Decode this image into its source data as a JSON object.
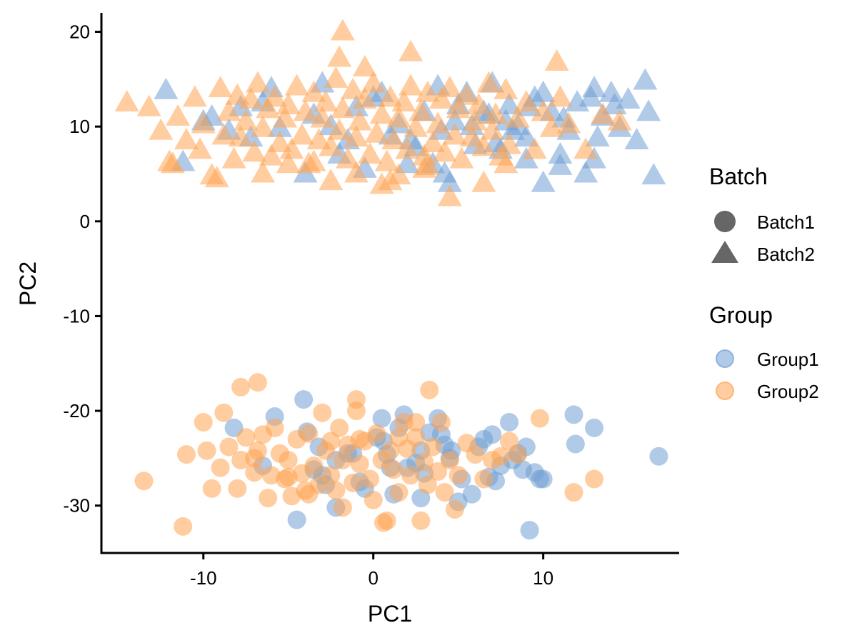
{
  "chart_data": {
    "type": "scatter",
    "xlabel": "PC1",
    "ylabel": "PC2",
    "xlim": [
      -16,
      18
    ],
    "ylim": [
      -35,
      22
    ],
    "x_ticks": [
      -10,
      0,
      10
    ],
    "y_ticks": [
      -30,
      -20,
      -10,
      0,
      10,
      20
    ],
    "grid": false,
    "legend_position": "right",
    "legend": {
      "batch": {
        "title": "Batch",
        "items": [
          {
            "label": "Batch1",
            "shape": "circle"
          },
          {
            "label": "Batch2",
            "shape": "triangle"
          }
        ]
      },
      "group": {
        "title": "Group",
        "items": [
          {
            "label": "Group1",
            "color": "#6F9FD4"
          },
          {
            "label": "Group2",
            "color": "#FFA452"
          }
        ]
      }
    },
    "colors": {
      "Group1": "#6F9FD4",
      "Group2": "#FFA452",
      "legend_shape": "#666666"
    },
    "point_alpha": 0.55,
    "series": [
      {
        "group": "Group1",
        "batch": "Batch1",
        "x": [
          -8.2,
          -5.8,
          -4.1,
          -3.9,
          -3.5,
          -2.8,
          -2.2,
          -1.5,
          0.5,
          0.6,
          1.0,
          1.8,
          2.5,
          2.8,
          3.8,
          4.0,
          4.5,
          5.2,
          5.8,
          6.2,
          7.0,
          7.2,
          8.0,
          8.5,
          9.0,
          9.5,
          9.8,
          11.8,
          11.9,
          13.0,
          16.8,
          9.2,
          -4.5,
          -3.0,
          -0.5,
          0.2,
          1.5,
          2.8,
          4.6,
          6.5,
          7.5,
          8.8,
          -2.2,
          -0.8,
          1.2,
          3.3,
          5.0,
          -6.5,
          -1.2,
          2.0,
          4.2,
          6.8,
          8.2,
          10.0,
          -3.2,
          0.8,
          3.0
        ],
        "y": [
          -21.8,
          -20.6,
          -18.8,
          -22.2,
          -26.2,
          -27.8,
          -30.2,
          -24.5,
          -20.8,
          -23.2,
          -26.0,
          -20.4,
          -25.5,
          -29.2,
          -20.8,
          -22.5,
          -25.0,
          -27.2,
          -28.8,
          -23.8,
          -22.5,
          -27.4,
          -21.2,
          -24.5,
          -23.8,
          -26.5,
          -27.2,
          -20.4,
          -23.5,
          -21.8,
          -24.8,
          -32.6,
          -31.5,
          -26.8,
          -28.2,
          -22.8,
          -21.8,
          -24.2,
          -24.2,
          -23.0,
          -25.8,
          -26.2,
          -25.2,
          -27.5,
          -28.8,
          -22.3,
          -29.6,
          -25.8,
          -24.5,
          -26.0,
          -23.6,
          -27.0,
          -25.2,
          -27.2,
          -23.8,
          -24.6,
          -26.6
        ]
      },
      {
        "group": "Group2",
        "batch": "Batch1",
        "x": [
          -13.5,
          -11.0,
          -11.2,
          -10.0,
          -9.8,
          -9.5,
          -9.0,
          -8.8,
          -8.5,
          -8.0,
          -7.8,
          -7.5,
          -7.0,
          -6.8,
          -6.5,
          -6.2,
          -6.0,
          -5.8,
          -5.5,
          -5.2,
          -5.0,
          -4.8,
          -4.5,
          -4.2,
          -4.0,
          -3.8,
          -3.5,
          -3.2,
          -3.0,
          -2.8,
          -2.5,
          -2.2,
          -2.0,
          -1.8,
          -1.5,
          -1.2,
          -1.0,
          -0.8,
          -0.5,
          -0.2,
          0.0,
          0.2,
          0.5,
          0.8,
          1.0,
          1.2,
          1.5,
          1.8,
          2.0,
          2.2,
          2.5,
          2.8,
          3.0,
          3.2,
          3.5,
          3.8,
          4.0,
          4.2,
          4.5,
          4.8,
          5.0,
          5.5,
          6.0,
          6.5,
          7.0,
          7.5,
          8.0,
          8.5,
          9.8,
          11.8,
          13.0,
          -7.8,
          -6.8,
          -1.0,
          3.3,
          0.6,
          -2.5,
          1.5,
          -3.8,
          -1.8,
          2.5,
          -0.8,
          -5.0,
          -7.0
        ],
        "y": [
          -27.4,
          -24.6,
          -32.2,
          -21.2,
          -24.2,
          -28.2,
          -26.0,
          -20.2,
          -23.8,
          -28.2,
          -25.2,
          -22.8,
          -26.5,
          -24.2,
          -22.5,
          -29.2,
          -26.8,
          -21.8,
          -24.5,
          -27.2,
          -25.2,
          -29.0,
          -23.0,
          -26.6,
          -28.4,
          -22.4,
          -25.8,
          -27.8,
          -20.2,
          -24.2,
          -26.8,
          -28.4,
          -21.8,
          -25.2,
          -23.6,
          -27.6,
          -20.0,
          -25.6,
          -23.2,
          -27.2,
          -29.4,
          -22.4,
          -25.2,
          -31.6,
          -24.2,
          -26.2,
          -28.6,
          -21.2,
          -24.0,
          -26.8,
          -22.8,
          -31.6,
          -25.4,
          -27.8,
          -23.8,
          -26.4,
          -21.2,
          -28.6,
          -25.2,
          -30.4,
          -26.8,
          -23.4,
          -24.6,
          -27.2,
          -25.2,
          -24.8,
          -23.2,
          -24.6,
          -20.8,
          -28.6,
          -27.2,
          -17.5,
          -17.0,
          -18.8,
          -17.8,
          -31.8,
          -23.2,
          -22.8,
          -28.8,
          -30.2,
          -21.2,
          -23.0,
          -27.0,
          -25.0
        ]
      },
      {
        "group": "Group1",
        "batch": "Batch2",
        "x": [
          -12.2,
          -11.2,
          -9.5,
          -8.5,
          -7.2,
          -6.5,
          -6.0,
          -4.0,
          -3.0,
          -2.5,
          -2.0,
          -1.0,
          -0.5,
          0.5,
          1.0,
          2.0,
          3.0,
          3.8,
          4.2,
          4.8,
          5.5,
          6.0,
          6.5,
          7.0,
          7.5,
          8.0,
          8.5,
          9.0,
          9.5,
          10.0,
          10.5,
          11.0,
          11.5,
          12.0,
          12.5,
          13.0,
          13.5,
          14.0,
          14.5,
          15.0,
          15.5,
          16.0,
          16.2,
          16.5,
          11.0,
          12.8,
          13.2,
          10.0,
          9.0,
          7.8,
          6.8,
          5.0,
          4.0,
          2.5,
          1.5,
          0.0,
          -1.5,
          -3.5,
          -5.5,
          -7.8,
          -10.0,
          4.5,
          8.2,
          9.2,
          11.2,
          13.0,
          14.2,
          7.2,
          5.8,
          3.5,
          2.2
        ],
        "y": [
          13.8,
          6.2,
          11.0,
          9.5,
          8.8,
          12.5,
          14.0,
          5.0,
          14.5,
          10.0,
          7.0,
          12.0,
          5.5,
          13.5,
          9.0,
          6.0,
          11.5,
          14.2,
          5.0,
          10.5,
          13.5,
          8.0,
          11.5,
          14.5,
          7.5,
          12.2,
          10.0,
          8.8,
          13.0,
          4.0,
          11.5,
          7.0,
          9.5,
          12.5,
          5.0,
          14.0,
          11.0,
          13.5,
          9.8,
          12.8,
          8.5,
          14.8,
          11.5,
          4.8,
          5.8,
          13.0,
          8.8,
          13.5,
          6.5,
          10.5,
          11.2,
          12.2,
          9.5,
          7.8,
          10.2,
          13.0,
          8.5,
          11.2,
          9.8,
          12.0,
          10.5,
          4.0,
          9.5,
          12.0,
          10.8,
          6.5,
          12.2,
          8.2,
          10.0,
          6.0,
          8.5
        ]
      },
      {
        "group": "Group2",
        "batch": "Batch2",
        "x": [
          -14.5,
          -13.2,
          -12.5,
          -12.0,
          -11.5,
          -11.0,
          -10.5,
          -10.2,
          -10.0,
          -9.5,
          -9.0,
          -8.8,
          -8.5,
          -8.2,
          -8.0,
          -7.8,
          -7.5,
          -7.2,
          -7.0,
          -6.8,
          -6.5,
          -6.2,
          -6.0,
          -5.8,
          -5.5,
          -5.2,
          -5.0,
          -4.8,
          -4.5,
          -4.2,
          -4.0,
          -3.8,
          -3.5,
          -3.2,
          -3.0,
          -2.8,
          -2.5,
          -2.2,
          -2.0,
          -1.8,
          -1.5,
          -1.2,
          -1.0,
          -0.8,
          -0.5,
          -0.2,
          0.0,
          0.2,
          0.5,
          0.8,
          1.0,
          1.2,
          1.5,
          1.8,
          2.0,
          2.2,
          2.5,
          2.8,
          3.0,
          3.2,
          3.5,
          3.8,
          4.0,
          4.2,
          4.5,
          4.8,
          5.0,
          5.2,
          5.5,
          5.8,
          6.0,
          6.2,
          6.5,
          6.8,
          7.0,
          7.2,
          7.5,
          7.8,
          8.0,
          8.5,
          9.0,
          9.5,
          10.0,
          10.5,
          11.0,
          11.5,
          12.5,
          13.5,
          14.5,
          -1.8,
          -2.0,
          2.2,
          10.8,
          7.8,
          6.5,
          -2.5,
          -1.0,
          0.5,
          1.5,
          3.0,
          -3.5,
          -5.0,
          -6.5,
          -9.2,
          -11.8,
          4.5,
          3.2,
          1.0,
          -0.5
        ],
        "y": [
          12.5,
          12.0,
          9.5,
          6.2,
          11.0,
          8.5,
          13.0,
          7.5,
          10.2,
          4.8,
          14.0,
          9.0,
          11.5,
          6.5,
          13.2,
          8.8,
          10.5,
          12.8,
          7.2,
          14.5,
          9.8,
          11.8,
          6.8,
          13.0,
          8.2,
          10.8,
          12.2,
          7.5,
          14.2,
          9.0,
          11.5,
          6.0,
          13.5,
          8.5,
          10.8,
          12.5,
          7.8,
          15.0,
          9.5,
          11.8,
          6.5,
          13.8,
          8.8,
          10.5,
          12.8,
          7.0,
          14.5,
          9.2,
          11.2,
          6.2,
          13.0,
          8.5,
          10.8,
          12.5,
          7.5,
          14.2,
          9.8,
          11.5,
          6.8,
          13.5,
          8.2,
          10.2,
          12.8,
          7.2,
          14.0,
          9.0,
          11.8,
          6.5,
          13.2,
          8.8,
          10.5,
          12.2,
          7.8,
          14.5,
          9.5,
          11.2,
          6.8,
          13.8,
          8.0,
          10.8,
          12.5,
          7.5,
          11.5,
          9.8,
          13.0,
          10.2,
          7.5,
          11.2,
          10.5,
          20.0,
          17.2,
          17.8,
          16.8,
          6.0,
          4.0,
          4.2,
          5.0,
          3.8,
          4.8,
          5.5,
          6.2,
          6.0,
          5.0,
          4.5,
          6.0,
          2.5,
          5.8,
          4.2,
          16.2
        ]
      }
    ]
  }
}
